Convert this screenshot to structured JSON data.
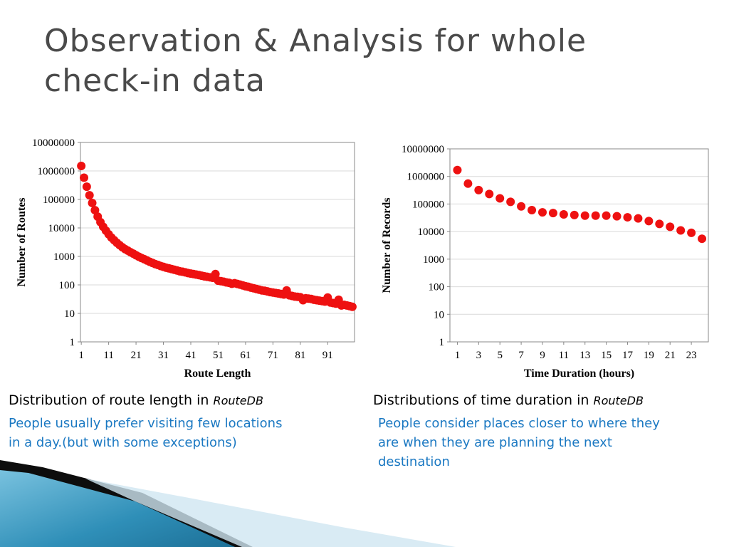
{
  "slide": {
    "title_line1": "Observation & Analysis for whole",
    "title_line2": "check-in data"
  },
  "left": {
    "caption": "Distribution of route length in ",
    "caption_em": "RouteDB",
    "note_line1": "People usually prefer visiting few locations",
    "note_line2": "in a day.(but with some exceptions)"
  },
  "right": {
    "caption": "Distributions of time duration in ",
    "caption_em": "RouteDB",
    "note_line1": "People consider places closer to where they",
    "note_line2": "are when they are planning the next",
    "note_line3": "destination"
  },
  "colors": {
    "marker": "#ee1111",
    "note_text": "#1a78c2",
    "title": "#4a4a4a"
  },
  "chart_data": [
    {
      "type": "scatter",
      "xlabel": "Route Length",
      "ylabel": "Number of Routes",
      "yscale": "log",
      "ylim": [
        1,
        10000000
      ],
      "xlim": [
        1,
        100
      ],
      "y_ticks": [
        "1",
        "10",
        "100",
        "1000",
        "10000",
        "100000",
        "1000000",
        "10000000"
      ],
      "x_ticks": [
        "1",
        "11",
        "21",
        "31",
        "41",
        "51",
        "61",
        "71",
        "81",
        "91"
      ],
      "grid": true,
      "x": [
        1,
        2,
        3,
        4,
        5,
        6,
        7,
        8,
        9,
        10,
        11,
        12,
        13,
        14,
        15,
        16,
        17,
        18,
        19,
        20,
        21,
        22,
        23,
        24,
        25,
        26,
        27,
        28,
        29,
        30,
        31,
        32,
        33,
        34,
        35,
        36,
        37,
        38,
        39,
        40,
        41,
        42,
        43,
        44,
        45,
        46,
        47,
        48,
        49,
        50,
        51,
        52,
        53,
        54,
        55,
        56,
        57,
        58,
        59,
        60,
        61,
        62,
        63,
        64,
        65,
        66,
        67,
        68,
        69,
        70,
        71,
        72,
        73,
        74,
        75,
        76,
        77,
        78,
        79,
        80,
        81,
        82,
        83,
        84,
        85,
        86,
        87,
        88,
        89,
        90,
        91,
        92,
        93,
        94,
        95,
        96,
        97,
        98,
        99,
        100
      ],
      "values": [
        1500000,
        580000,
        280000,
        140000,
        75000,
        42000,
        25000,
        16000,
        11000,
        8000,
        6000,
        4600,
        3700,
        3000,
        2500,
        2100,
        1800,
        1600,
        1400,
        1250,
        1100,
        980,
        880,
        800,
        720,
        650,
        590,
        540,
        500,
        460,
        430,
        400,
        380,
        360,
        340,
        320,
        300,
        290,
        275,
        260,
        250,
        240,
        230,
        220,
        210,
        200,
        192,
        185,
        178,
        240,
        140,
        135,
        130,
        122,
        118,
        110,
        115,
        108,
        102,
        96,
        90,
        86,
        80,
        76,
        72,
        68,
        64,
        62,
        59,
        56,
        54,
        52,
        50,
        48,
        46,
        64,
        43,
        41,
        39,
        38,
        37,
        29,
        34,
        33,
        32,
        30,
        29,
        28,
        27,
        26,
        36,
        24,
        23,
        22,
        30,
        19,
        20,
        19,
        18,
        17
      ]
    },
    {
      "type": "scatter",
      "xlabel": "Time Duration (hours)",
      "ylabel": "Number of Records",
      "yscale": "log",
      "ylim": [
        1,
        10000000
      ],
      "xlim": [
        1,
        24
      ],
      "y_ticks": [
        "1",
        "10",
        "100",
        "1000",
        "10000",
        "100000",
        "1000000",
        "10000000"
      ],
      "x_ticks": [
        "1",
        "3",
        "5",
        "7",
        "9",
        "11",
        "13",
        "15",
        "17",
        "19",
        "21",
        "23"
      ],
      "grid": true,
      "x": [
        1,
        2,
        3,
        4,
        5,
        6,
        7,
        8,
        9,
        10,
        11,
        12,
        13,
        14,
        15,
        16,
        17,
        18,
        19,
        20,
        21,
        22,
        23,
        24
      ],
      "values": [
        1700000,
        550000,
        320000,
        230000,
        160000,
        120000,
        82000,
        60000,
        50000,
        47000,
        42000,
        40000,
        38000,
        38000,
        38000,
        36000,
        33000,
        30000,
        24000,
        19000,
        15000,
        11000,
        9000,
        5500
      ]
    }
  ]
}
